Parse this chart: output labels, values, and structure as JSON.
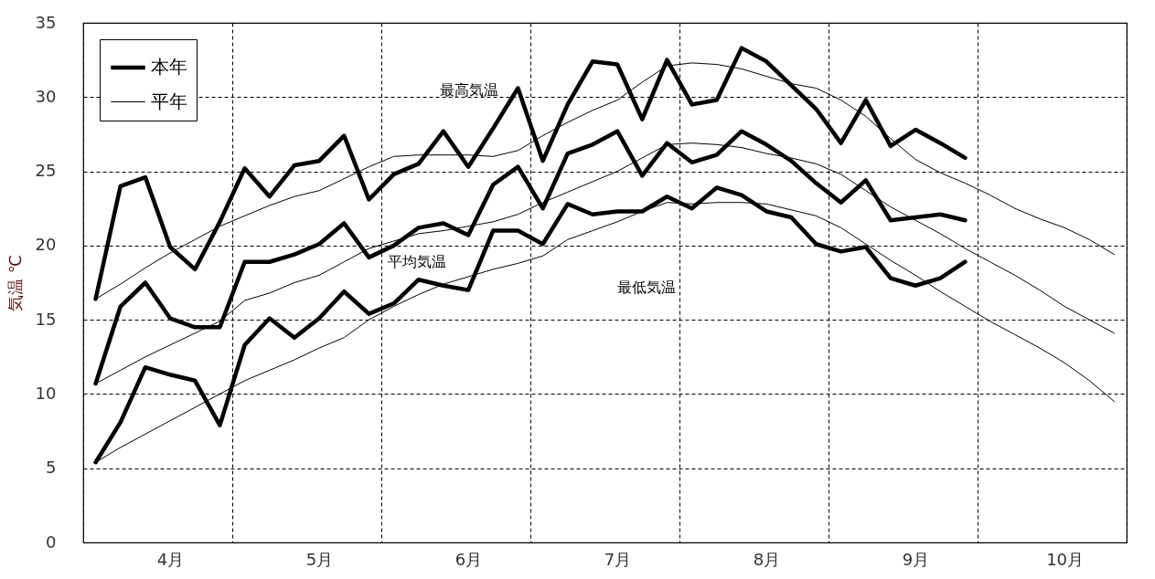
{
  "chart_data": {
    "type": "line",
    "ylabel": "気温 ℃",
    "legend": "top left",
    "grid": true,
    "categories": [
      null,
      null,
      null,
      "4月",
      null,
      null,
      null,
      null,
      null,
      "5月",
      null,
      null,
      null,
      null,
      null,
      "6月",
      null,
      null,
      null,
      null,
      null,
      "7月",
      null,
      null,
      null,
      null,
      null,
      "8月",
      null,
      null,
      null,
      null,
      null,
      "9月",
      null,
      null,
      null,
      null,
      null,
      "10月",
      null,
      null
    ],
    "ylim": [
      0,
      35
    ],
    "yticks": [
      0,
      5,
      10,
      15,
      20,
      25,
      30,
      35
    ],
    "series": [
      {
        "name": "本年",
        "color": "#000000",
        "values": [
          16.4,
          24.0,
          24.6,
          19.9,
          18.4,
          21.6,
          25.2,
          23.3,
          25.4,
          25.7,
          27.4,
          23.1,
          24.8,
          25.5,
          27.7,
          25.3,
          27.9,
          30.6,
          25.7,
          29.5,
          32.4,
          32.2,
          28.5,
          32.5,
          29.5,
          29.8,
          33.3,
          32.4,
          30.8,
          29.2,
          26.9,
          29.8,
          26.7,
          27.8,
          26.9,
          25.9,
          null,
          null,
          null,
          null,
          null,
          null
        ]
      },
      {
        "color": "#000000",
        "values": [
          10.7,
          15.9,
          17.5,
          15.1,
          14.5,
          14.5,
          18.9,
          18.9,
          19.4,
          20.1,
          21.5,
          19.2,
          20.0,
          21.2,
          21.5,
          20.7,
          24.1,
          25.3,
          22.5,
          26.2,
          26.8,
          27.7,
          24.7,
          26.9,
          25.6,
          26.1,
          27.7,
          26.8,
          25.7,
          24.2,
          22.9,
          24.4,
          21.7,
          21.9,
          22.1,
          21.7,
          null,
          null,
          null,
          null,
          null,
          null
        ]
      },
      {
        "color": "#000000",
        "values": [
          5.4,
          8.1,
          11.8,
          11.3,
          10.9,
          7.9,
          13.3,
          15.1,
          13.8,
          15.1,
          16.9,
          15.4,
          16.1,
          17.7,
          17.3,
          17.0,
          21.0,
          21.0,
          20.1,
          22.8,
          22.1,
          22.3,
          22.3,
          23.3,
          22.5,
          23.9,
          23.4,
          22.3,
          21.9,
          20.1,
          19.6,
          19.9,
          17.8,
          17.3,
          17.8,
          18.9,
          null,
          null,
          null,
          null,
          null,
          null
        ]
      },
      {
        "name": "平年",
        "color": "#000000",
        "values": [
          16.4,
          17.4,
          18.5,
          19.5,
          20.4,
          21.3,
          22.0,
          22.7,
          23.3,
          23.7,
          24.5,
          25.3,
          26.0,
          26.1,
          26.1,
          26.1,
          26.0,
          26.4,
          27.4,
          28.3,
          29.1,
          29.8,
          31.0,
          32.1,
          32.3,
          32.2,
          31.9,
          31.4,
          30.9,
          30.6,
          29.8,
          28.7,
          27.2,
          25.8,
          24.9,
          24.2,
          23.4,
          22.5,
          21.8,
          21.2,
          20.4,
          19.4
        ]
      },
      {
        "color": "#000000",
        "values": [
          10.7,
          11.6,
          12.5,
          13.3,
          14.1,
          14.9,
          16.3,
          16.8,
          17.5,
          18.0,
          18.9,
          19.8,
          20.3,
          20.8,
          21.0,
          21.3,
          21.6,
          22.1,
          22.9,
          23.6,
          24.3,
          25.0,
          25.9,
          26.8,
          26.9,
          26.8,
          26.6,
          26.2,
          25.9,
          25.5,
          24.8,
          23.7,
          22.6,
          21.7,
          20.8,
          19.8,
          18.9,
          18.0,
          17.0,
          15.9,
          15.0,
          14.1
        ]
      },
      {
        "color": "#000000",
        "values": [
          5.4,
          6.4,
          7.3,
          8.2,
          9.1,
          10.0,
          10.9,
          11.6,
          12.3,
          13.1,
          13.8,
          15.0,
          15.9,
          16.7,
          17.4,
          17.9,
          18.4,
          18.8,
          19.3,
          20.4,
          21.0,
          21.6,
          22.3,
          22.9,
          22.8,
          22.9,
          22.9,
          22.8,
          22.4,
          22.0,
          21.2,
          20.1,
          19.0,
          18.0,
          16.9,
          15.9,
          14.9,
          14.0,
          13.1,
          12.1,
          10.9,
          9.5
        ]
      }
    ],
    "annotations": [
      "最高気温",
      "平均気温",
      "最低気温"
    ]
  }
}
